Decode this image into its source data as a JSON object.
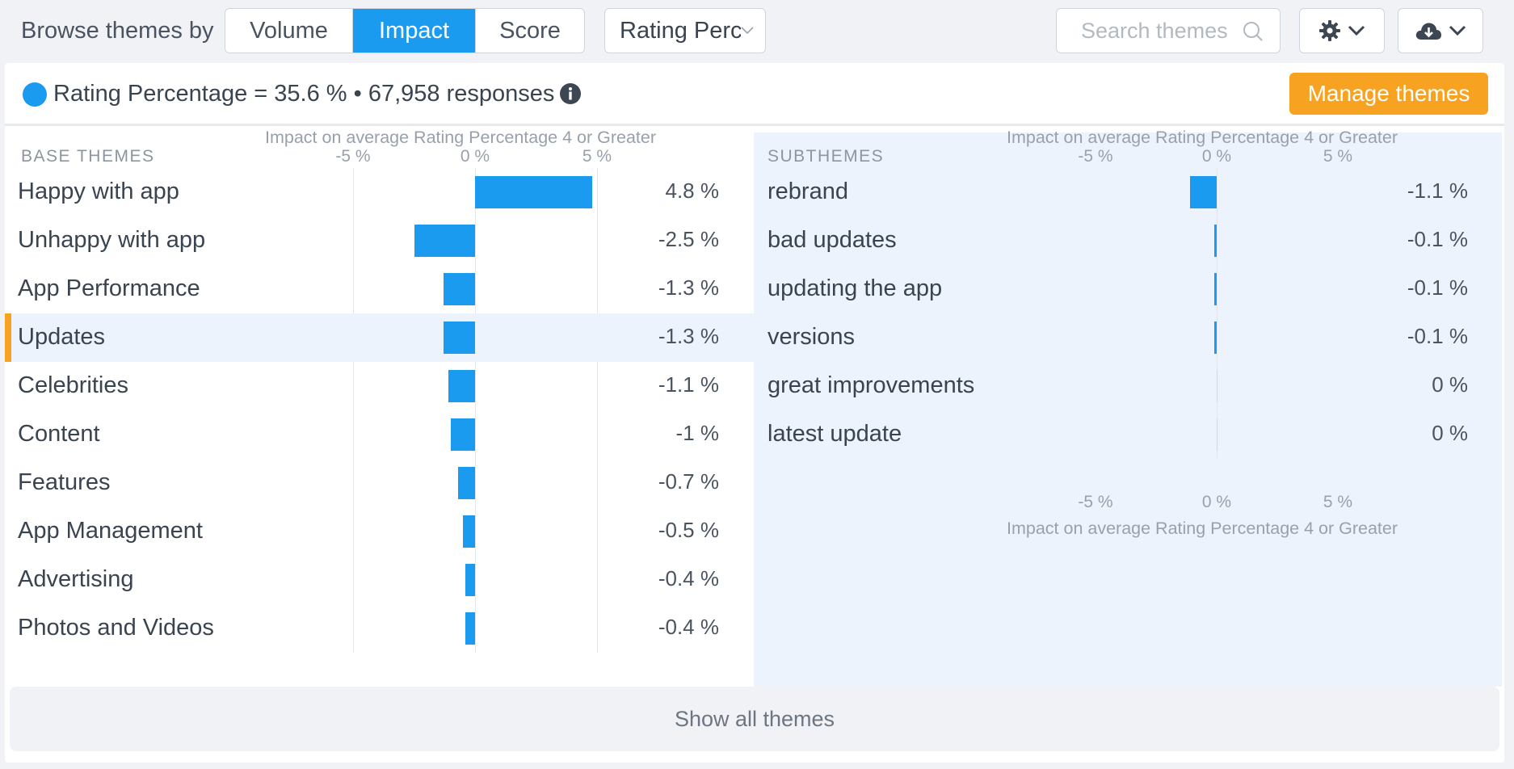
{
  "toolbar": {
    "browse_label": "Browse themes by",
    "modes": [
      {
        "label": "Volume",
        "active": false
      },
      {
        "label": "Impact",
        "active": true
      },
      {
        "label": "Score",
        "active": false
      }
    ],
    "metric_dropdown": "Rating Percentage",
    "search_placeholder": "Search themes",
    "settings_icon": "gear-icon",
    "download_icon": "cloud-download-icon"
  },
  "summary": {
    "text": "Rating Percentage = 35.6 % • 67,958 responses",
    "dot_color": "#1a9bf0",
    "manage_button": "Manage themes",
    "manage_color": "#f7a221"
  },
  "base_themes": {
    "header": "BASE THEMES",
    "axis_title": "Impact on average Rating Percentage 4 or Greater",
    "ticks": [
      "-5 %",
      "0 %",
      "5 %"
    ],
    "selected": "Updates",
    "rows": [
      {
        "name": "Happy with app",
        "value": 4.8,
        "label": "4.8 %"
      },
      {
        "name": "Unhappy with app",
        "value": -2.5,
        "label": "-2.5 %"
      },
      {
        "name": "App Performance",
        "value": -1.3,
        "label": "-1.3 %"
      },
      {
        "name": "Updates",
        "value": -1.3,
        "label": "-1.3 %"
      },
      {
        "name": "Celebrities",
        "value": -1.1,
        "label": "-1.1 %"
      },
      {
        "name": "Content",
        "value": -1.0,
        "label": "-1 %"
      },
      {
        "name": "Features",
        "value": -0.7,
        "label": "-0.7 %"
      },
      {
        "name": "App Management",
        "value": -0.5,
        "label": "-0.5 %"
      },
      {
        "name": "Advertising",
        "value": -0.4,
        "label": "-0.4 %"
      },
      {
        "name": "Photos and Videos",
        "value": -0.4,
        "label": "-0.4 %"
      }
    ]
  },
  "subthemes": {
    "header": "SUBTHEMES",
    "axis_title": "Impact on average Rating Percentage 4 or Greater",
    "ticks": [
      "-5 %",
      "0 %",
      "5 %"
    ],
    "rows": [
      {
        "name": "rebrand",
        "value": -1.1,
        "label": "-1.1 %"
      },
      {
        "name": "bad updates",
        "value": -0.1,
        "label": "-0.1 %"
      },
      {
        "name": "updating the app",
        "value": -0.1,
        "label": "-0.1 %"
      },
      {
        "name": "versions",
        "value": -0.1,
        "label": "-0.1 %"
      },
      {
        "name": "great improvements",
        "value": 0,
        "label": "0 %"
      },
      {
        "name": "latest update",
        "value": 0,
        "label": "0 %"
      }
    ]
  },
  "show_all": "Show all themes"
}
